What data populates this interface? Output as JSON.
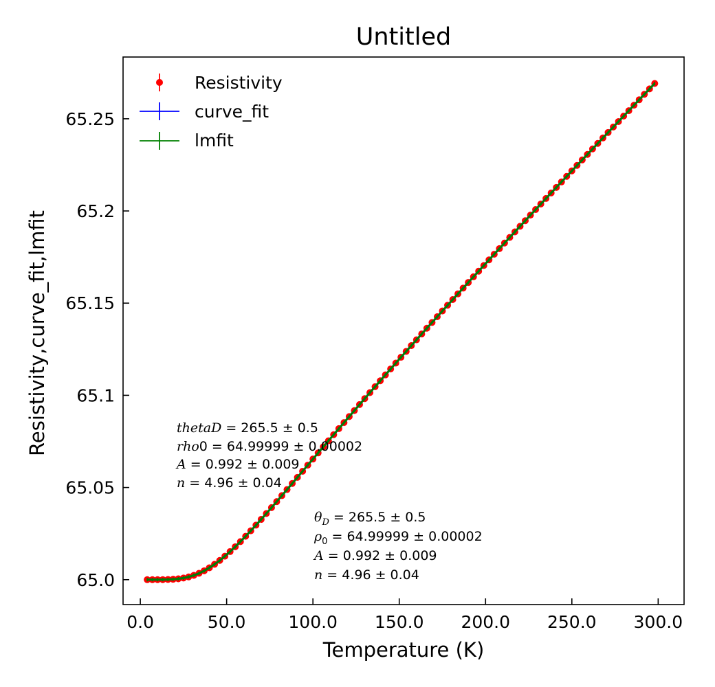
{
  "chart_data": {
    "type": "line",
    "title": "Untitled",
    "xlabel": "Temperature (K)",
    "ylabel": "Resistivity,curve_fit,lmfit",
    "xlim": [
      -10,
      315
    ],
    "ylim": [
      64.9865,
      65.2835
    ],
    "x_ticks": [
      0,
      50,
      100,
      150,
      200,
      250,
      300
    ],
    "x_tick_labels": [
      "0.0",
      "50.0",
      "100.0",
      "150.0",
      "200.0",
      "250.0",
      "300.0"
    ],
    "y_ticks": [
      65.0,
      65.05,
      65.1,
      65.15,
      65.2,
      65.25
    ],
    "y_tick_labels": [
      "65.0",
      "65.05",
      "65.1",
      "65.15",
      "65.2",
      "65.25"
    ],
    "grid": false,
    "legend_position": "upper-left",
    "series": [
      {
        "name": "Resistivity",
        "color": "#ff0000",
        "style": "points-with-errorbars"
      },
      {
        "name": "curve_fit",
        "color": "#0000ff",
        "style": "line"
      },
      {
        "name": "lmfit",
        "color": "#008000",
        "style": "line"
      }
    ],
    "fit_params": {
      "thetaD": 265.5,
      "rho0": 64.99999,
      "A": 0.992,
      "n": 4.96
    },
    "x_start": 4,
    "x_end": 300,
    "x_step": 3,
    "annotations": {
      "block1": [
        {
          "label": "thetaD",
          "text": " = 265.5 ± 0.5"
        },
        {
          "label": "rho",
          "label2": "0",
          "text": " = 64.99999 ± 0.00002"
        },
        {
          "label": "A",
          "text": " = 0.992 ± 0.009"
        },
        {
          "label": "n",
          "text": " = 4.96 ± 0.04"
        }
      ],
      "block2": [
        {
          "label": "θ",
          "sub": "D",
          "text": " = 265.5 ± 0.5"
        },
        {
          "label": "ρ",
          "sub": "0",
          "text": " = 64.99999 ± 0.00002"
        },
        {
          "label": "A",
          "text": " = 0.992 ± 0.009"
        },
        {
          "label": "n",
          "text": " = 4.96 ± 0.04"
        }
      ]
    }
  }
}
